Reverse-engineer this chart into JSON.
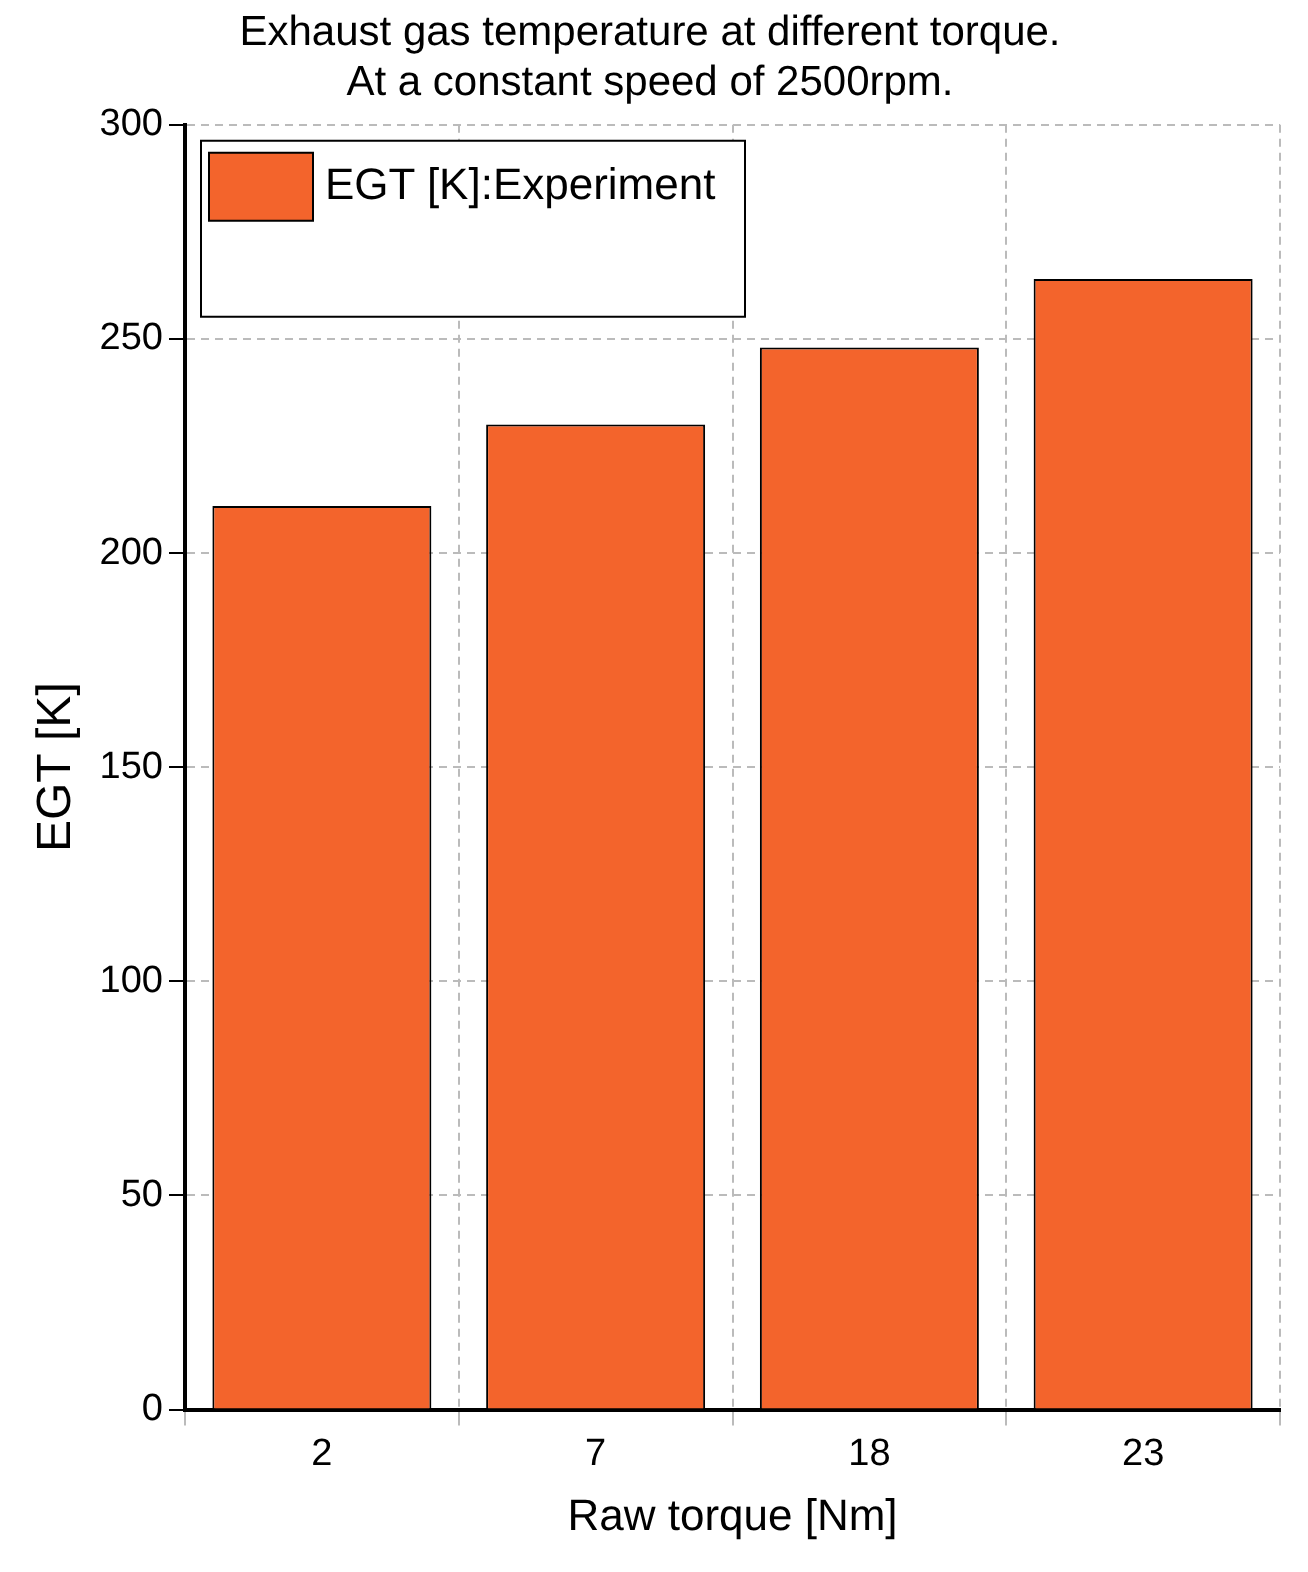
{
  "chart_data": {
    "type": "bar",
    "title": "Exhaust gas temperature at different torque.\nAt a constant speed of 2500rpm.",
    "xlabel": "Raw torque [Nm]",
    "ylabel": "EGT [K]",
    "categories": [
      "2",
      "7",
      "18",
      "23"
    ],
    "series": [
      {
        "name": "EGT [K]:Experiment",
        "color": "#f3642c",
        "values": [
          211,
          230,
          248,
          264
        ]
      }
    ],
    "ylim": [
      0,
      300
    ],
    "yticks": [
      0,
      50,
      100,
      150,
      200,
      250,
      300
    ],
    "grid": true,
    "legend": "top left"
  }
}
